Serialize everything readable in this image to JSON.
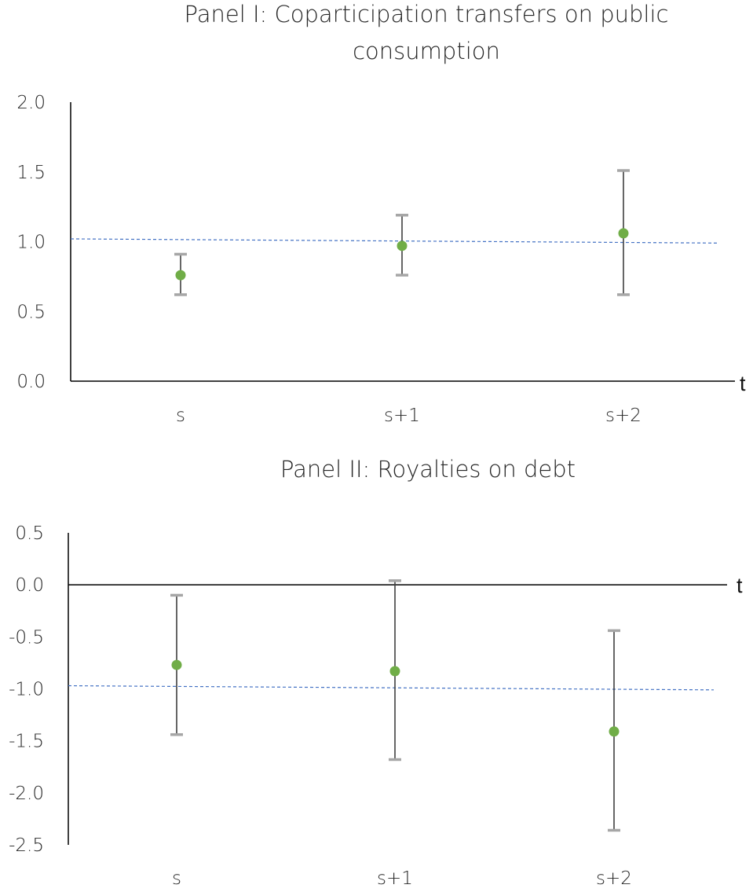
{
  "chart_data": [
    {
      "type": "scatter",
      "title_lines": [
        "Panel I: Coparticipation transfers on public",
        "consumption"
      ],
      "xlabel": "t",
      "ylabel": "",
      "categories": [
        "s",
        "s+1",
        "s+2"
      ],
      "ylim": [
        0.0,
        2.0
      ],
      "yticks": [
        "2.0",
        "1.5",
        "1.0",
        "0.5",
        "0.0"
      ],
      "ytick_values": [
        2.0,
        1.5,
        1.0,
        0.5,
        0.0
      ],
      "series": [
        {
          "values": [
            0.76,
            0.97,
            1.06
          ],
          "lower": [
            0.62,
            0.76,
            0.62
          ],
          "upper": [
            0.91,
            1.19,
            1.51
          ]
        }
      ],
      "reference_line": {
        "from": 1.02,
        "to": 0.99,
        "style": "dashed"
      },
      "grid": false,
      "legend": "none"
    },
    {
      "type": "scatter",
      "title_lines": [
        "Panel II: Royalties on debt"
      ],
      "xlabel": "t",
      "ylabel": "",
      "categories": [
        "s",
        "s+1",
        "s+2"
      ],
      "ylim": [
        -2.5,
        0.5
      ],
      "yticks": [
        "0.5",
        "0.0",
        "-0.5",
        "-1.0",
        "-1.5",
        "-2.0",
        "-2.5"
      ],
      "ytick_values": [
        0.5,
        0.0,
        -0.5,
        -1.0,
        -1.5,
        -2.0,
        -2.5
      ],
      "series": [
        {
          "values": [
            -0.77,
            -0.83,
            -1.41
          ],
          "lower": [
            -1.44,
            -1.68,
            -2.36
          ],
          "upper": [
            -0.1,
            0.04,
            -0.44
          ]
        }
      ],
      "reference_line": {
        "from": -0.97,
        "to": -1.01,
        "style": "dashed"
      },
      "grid": false,
      "legend": "none"
    }
  ],
  "colors": {
    "point": "#70AD47",
    "error_bar": "#404040",
    "cap": "#A6A6A6",
    "reference_line": "#4472C4",
    "axis": "#000000"
  }
}
